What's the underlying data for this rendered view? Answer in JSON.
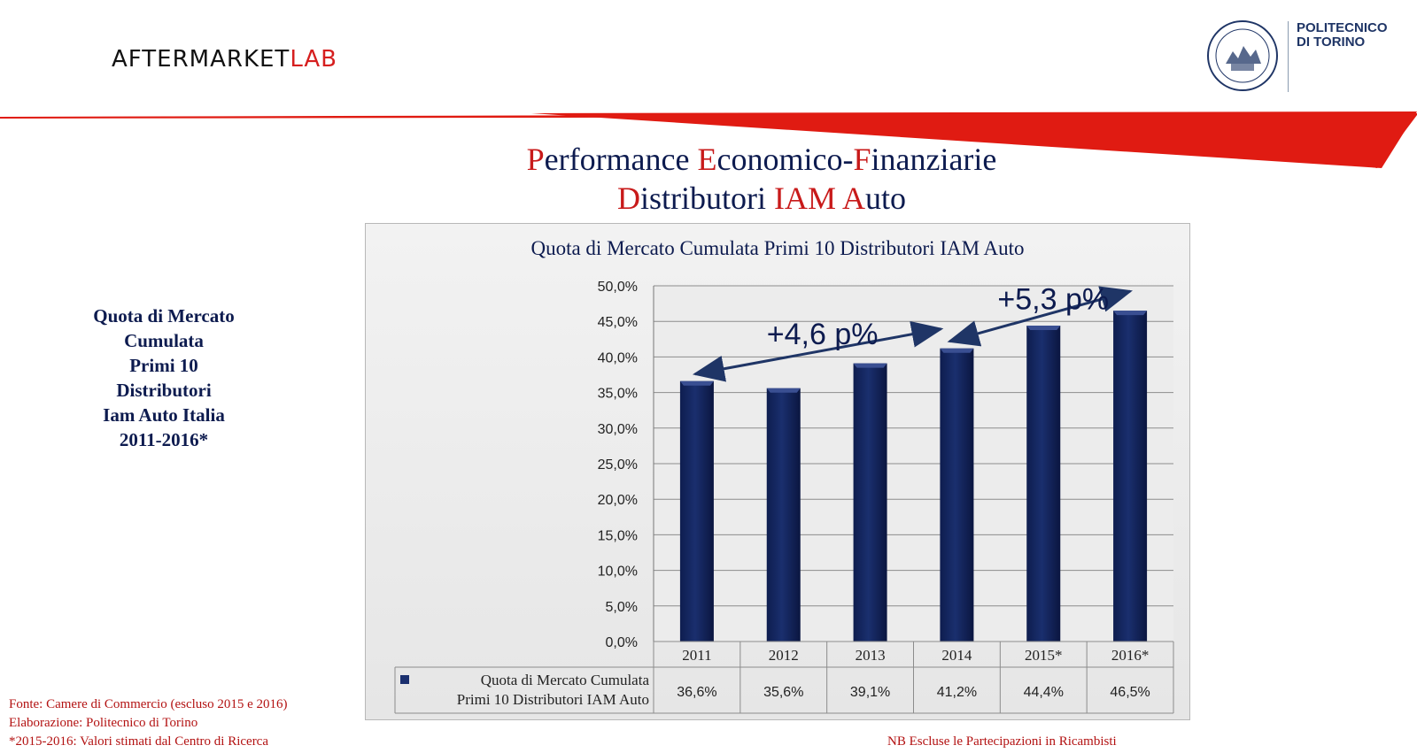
{
  "header": {
    "logo_main": "AFTERMARKET",
    "logo_accent": "LAB",
    "institution_line1": "POLITECNICO",
    "institution_line2": "DI TORINO"
  },
  "title": {
    "line1": [
      {
        "text": "P",
        "accent": true
      },
      {
        "text": "erformance ",
        "accent": false
      },
      {
        "text": "E",
        "accent": true
      },
      {
        "text": "conomico-",
        "accent": false
      },
      {
        "text": "F",
        "accent": true
      },
      {
        "text": "inanziarie",
        "accent": false
      }
    ],
    "line2": [
      {
        "text": "D",
        "accent": true
      },
      {
        "text": "istributori ",
        "accent": false
      },
      {
        "text": "IAM A",
        "accent": true
      },
      {
        "text": "uto",
        "accent": false
      }
    ]
  },
  "side_label": [
    "Quota di Mercato",
    "Cumulata",
    "Primi 10",
    "Distributori",
    "Iam Auto Italia",
    "2011-2016*"
  ],
  "chart_data": {
    "type": "bar",
    "title": "Quota di Mercato Cumulata Primi 10 Distributori IAM Auto",
    "categories": [
      "2011",
      "2012",
      "2013",
      "2014",
      "2015*",
      "2016*"
    ],
    "series": [
      {
        "name": "Quota di Mercato Cumulata Primi 10 Distributori IAM Auto",
        "values": [
          36.6,
          35.6,
          39.1,
          41.2,
          44.4,
          46.5
        ],
        "labels": [
          "36,6%",
          "35,6%",
          "39,1%",
          "41,2%",
          "44,4%",
          "46,5%"
        ]
      }
    ],
    "yticks": [
      "0,0%",
      "5,0%",
      "10,0%",
      "15,0%",
      "20,0%",
      "25,0%",
      "30,0%",
      "35,0%",
      "40,0%",
      "45,0%",
      "50,0%"
    ],
    "ylim": [
      0,
      50
    ],
    "grid": true,
    "legend": "data-table",
    "bar_color": "#1a2f6e",
    "annotations": [
      {
        "text": "+4,6 p%",
        "from": "2011",
        "to": "2014"
      },
      {
        "text": "+5,3 p%",
        "from": "2014",
        "to": "2016*"
      }
    ]
  },
  "footnotes": [
    "Fonte: Camere di Commercio (escluso 2015 e 2016)",
    "Elaborazione: Politecnico di Torino",
    "*2015-2016: Valori stimati dal Centro di Ricerca"
  ],
  "note_right": "NB Escluse le Partecipazioni in Ricambisti",
  "colors": {
    "accent_red": "#c81a1a",
    "navy": "#0d1b4f",
    "bar": "#1a2f6e"
  }
}
